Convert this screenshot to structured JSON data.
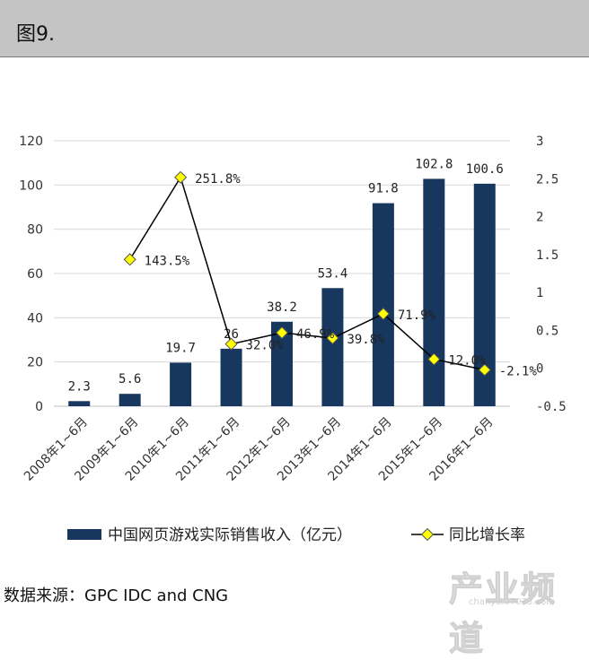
{
  "header": {
    "title": "图9."
  },
  "chart_data": {
    "type": "bar",
    "categories": [
      "2008年1~6月",
      "2009年1~6月",
      "2010年1~6月",
      "2011年1~6月",
      "2012年1~6月",
      "2013年1~6月",
      "2014年1~6月",
      "2015年1~6月",
      "2016年1~6月"
    ],
    "series": [
      {
        "name": "中国网页游戏实际销售收入（亿元）",
        "type": "bar",
        "axis": "left",
        "values": [
          2.3,
          5.6,
          19.7,
          26,
          38.2,
          53.4,
          91.8,
          102.8,
          100.6
        ],
        "labels": [
          "2.3",
          "5.6",
          "19.7",
          "26",
          "38.2",
          "53.4",
          "91.8",
          "102.8",
          "100.6"
        ],
        "color": "#17375e"
      },
      {
        "name": "同比增长率",
        "type": "line",
        "axis": "right",
        "values": [
          null,
          1.435,
          2.518,
          0.32,
          0.469,
          0.398,
          0.719,
          0.12,
          -0.021
        ],
        "labels": [
          "",
          "143.5%",
          "251.8%",
          "32.0%",
          "46.9%",
          "39.8%",
          "71.9%",
          "12.0%",
          "-2.1%"
        ],
        "color": "#000000",
        "marker_color": "#ffff00"
      }
    ],
    "y_left": {
      "min": 0,
      "max": 120,
      "ticks": [
        "0",
        "20",
        "40",
        "60",
        "80",
        "100",
        "120"
      ]
    },
    "y_right": {
      "min": -0.5,
      "max": 3,
      "ticks": [
        "-0.5",
        "0",
        "0.5",
        "1",
        "1.5",
        "2",
        "2.5",
        "3"
      ]
    },
    "grid": true,
    "legend_position": "bottom"
  },
  "footer": {
    "source": "数据来源：GPC IDC and CNG"
  },
  "watermark": {
    "text": "产业频道",
    "url": "chanye.07073.com"
  }
}
